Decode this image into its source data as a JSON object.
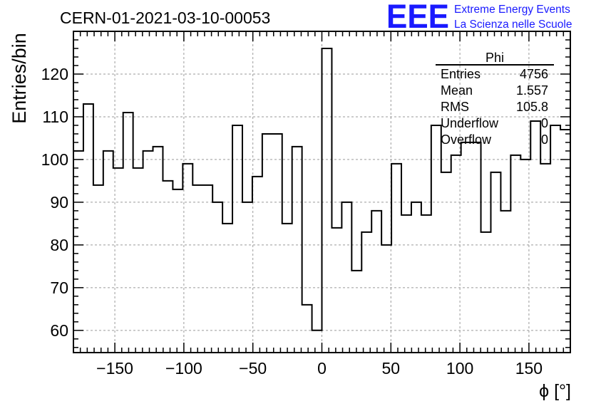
{
  "header": {
    "run_title": "CERN-01-2021-03-10-00053",
    "logo_text": "EEE",
    "project_line1": "Extreme Energy Events",
    "project_line2": "La Scienza nelle Scuole"
  },
  "stats_box": {
    "title": "Phi",
    "rows": [
      {
        "label": "Entries",
        "value": "4756"
      },
      {
        "label": "Mean",
        "value": "1.557"
      },
      {
        "label": "RMS",
        "value": "105.8"
      },
      {
        "label": "Underflow",
        "value": "0"
      },
      {
        "label": "Overflow",
        "value": "0"
      }
    ]
  },
  "colors": {
    "histogram_line": "#000000",
    "grid": "#9a9a9a",
    "logo": "#1a1aff",
    "project_text": "#1a1aff"
  },
  "chart_data": {
    "type": "histogram",
    "xlabel": "ϕ [°]",
    "ylabel": "Entries/bin",
    "xlim": [
      -180,
      180
    ],
    "ylim": [
      54.8,
      130
    ],
    "grid": true,
    "bin_width": 7.2,
    "x_ticks": [
      -150,
      -100,
      -50,
      0,
      50,
      100,
      150
    ],
    "x_tick_labels": [
      "−150",
      "−100",
      "−50",
      "0",
      "50",
      "100",
      "150"
    ],
    "y_ticks": [
      60,
      70,
      80,
      90,
      100,
      110,
      120
    ],
    "y_tick_labels": [
      "60",
      "70",
      "80",
      "90",
      "100",
      "110",
      "120"
    ],
    "bin_lows": [
      -180,
      -172.8,
      -165.6,
      -158.4,
      -151.2,
      -144,
      -136.8,
      -129.6,
      -122.4,
      -115.2,
      -108,
      -100.8,
      -93.6,
      -86.4,
      -79.2,
      -72,
      -64.8,
      -57.6,
      -50.4,
      -43.2,
      -36,
      -28.8,
      -21.6,
      -14.4,
      -7.2,
      0,
      7.2,
      14.4,
      21.6,
      28.8,
      36,
      43.2,
      50.4,
      57.6,
      64.8,
      72,
      79.2,
      86.4,
      93.6,
      100.8,
      108,
      115.2,
      122.4,
      129.6,
      136.8,
      144,
      151.2,
      158.4,
      165.6,
      172.8
    ],
    "values": [
      102,
      113,
      94,
      102,
      98,
      111,
      98,
      102,
      103,
      95,
      93,
      99,
      94,
      94,
      90,
      85,
      108,
      90,
      96,
      106,
      106,
      85,
      103,
      66,
      60,
      126,
      84,
      90,
      74,
      83,
      88,
      80,
      99,
      87,
      90,
      87,
      108,
      97,
      101,
      104,
      104,
      83,
      97,
      88,
      101,
      100,
      109,
      99,
      108,
      107
    ]
  }
}
